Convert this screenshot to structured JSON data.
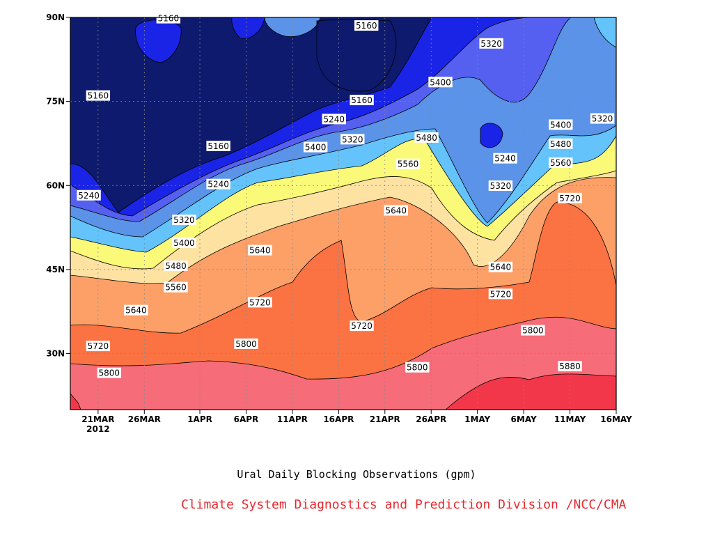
{
  "chart_data": {
    "type": "heatmap",
    "title": "",
    "caption": "Ural Daily Blocking Observations (gpm)",
    "credit": "Climate System Diagnostics and Prediction Division /NCC/CMA",
    "credit_color": "#e8282d",
    "x_tick_labels": [
      "21MAR",
      "26MAR",
      "1APR",
      "6APR",
      "11APR",
      "16APR",
      "21APR",
      "26APR",
      "1MAY",
      "6MAY",
      "11MAY",
      "16MAY"
    ],
    "x_year_label": "2012",
    "x_day_offsets": [
      3,
      8,
      14,
      19,
      24,
      29,
      34,
      39,
      44,
      49,
      54,
      59
    ],
    "x_range_days": [
      0,
      59
    ],
    "y_tick_labels": [
      "30N",
      "45N",
      "60N",
      "75N",
      "90N"
    ],
    "y_tick_values": [
      30,
      45,
      60,
      75,
      90
    ],
    "ylim": [
      20,
      90
    ],
    "contour_levels": [
      5160,
      5240,
      5320,
      5400,
      5480,
      5560,
      5640,
      5720,
      5800,
      5880
    ],
    "fill_colors": [
      "#0d1a6e",
      "#1a24e6",
      "#5560f0",
      "#5a93e8",
      "#63c3fa",
      "#fafa78",
      "#fde2a2",
      "#fda068",
      "#fb7243",
      "#f66c78",
      "#f2374a"
    ],
    "grid": true,
    "contour_labels": [
      {
        "text": "5160",
        "day": 10.6,
        "lat": 89.8
      },
      {
        "text": "5160",
        "day": 3,
        "lat": 76
      },
      {
        "text": "5160",
        "day": 16,
        "lat": 67
      },
      {
        "text": "5160",
        "day": 32,
        "lat": 88.5
      },
      {
        "text": "5160",
        "day": 31.5,
        "lat": 75.2
      },
      {
        "text": "5240",
        "day": 2,
        "lat": 58.2
      },
      {
        "text": "5240",
        "day": 16,
        "lat": 60.2
      },
      {
        "text": "5240",
        "day": 28.5,
        "lat": 71.8
      },
      {
        "text": "5240",
        "day": 47,
        "lat": 64.8
      },
      {
        "text": "5320",
        "day": 12.3,
        "lat": 53.8
      },
      {
        "text": "5320",
        "day": 30.5,
        "lat": 68.2
      },
      {
        "text": "5320",
        "day": 45.5,
        "lat": 85.3
      },
      {
        "text": "5320",
        "day": 46.5,
        "lat": 59.9
      },
      {
        "text": "5320",
        "day": 57.5,
        "lat": 71.9
      },
      {
        "text": "5400",
        "day": 12.3,
        "lat": 49.7
      },
      {
        "text": "5400",
        "day": 26.5,
        "lat": 66.8
      },
      {
        "text": "5400",
        "day": 40,
        "lat": 78.4
      },
      {
        "text": "5400",
        "day": 53,
        "lat": 70.8
      },
      {
        "text": "5480",
        "day": 11.4,
        "lat": 45.6
      },
      {
        "text": "5480",
        "day": 38.5,
        "lat": 68.5
      },
      {
        "text": "5480",
        "day": 53,
        "lat": 67.4
      },
      {
        "text": "5560",
        "day": 11.4,
        "lat": 41.8
      },
      {
        "text": "5560",
        "day": 36.5,
        "lat": 63.8
      },
      {
        "text": "5560",
        "day": 53,
        "lat": 64
      },
      {
        "text": "5640",
        "day": 7.1,
        "lat": 37.7
      },
      {
        "text": "5640",
        "day": 20.5,
        "lat": 48.4
      },
      {
        "text": "5640",
        "day": 35.2,
        "lat": 55.5
      },
      {
        "text": "5640",
        "day": 46.5,
        "lat": 45.4
      },
      {
        "text": "5720",
        "day": 3,
        "lat": 31.3
      },
      {
        "text": "5720",
        "day": 20.5,
        "lat": 39.1
      },
      {
        "text": "5720",
        "day": 31.5,
        "lat": 34.9
      },
      {
        "text": "5720",
        "day": 46.5,
        "lat": 40.6
      },
      {
        "text": "5720",
        "day": 54,
        "lat": 57.7
      },
      {
        "text": "5800",
        "day": 4.2,
        "lat": 26.5
      },
      {
        "text": "5800",
        "day": 19,
        "lat": 31.7
      },
      {
        "text": "5800",
        "day": 37.5,
        "lat": 27.5
      },
      {
        "text": "5800",
        "day": 50,
        "lat": 34.1
      },
      {
        "text": "5880",
        "day": 54,
        "lat": 27.7
      }
    ]
  }
}
